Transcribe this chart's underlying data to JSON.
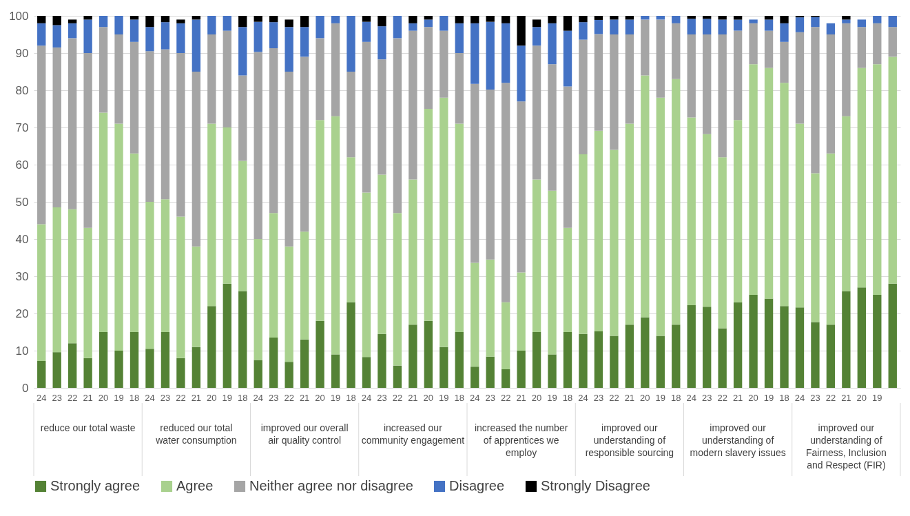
{
  "chart_data": {
    "type": "bar",
    "stacked": true,
    "categories": [
      "24",
      "23",
      "22",
      "21",
      "20",
      "19",
      "18",
      "24",
      "23",
      "22",
      "21",
      "20",
      "19",
      "18",
      "24",
      "23",
      "22",
      "21",
      "20",
      "19",
      "18",
      "24",
      "23",
      "22",
      "21",
      "20",
      "19",
      "18",
      "24",
      "23",
      "22",
      "21",
      "20",
      "19",
      "18",
      "24",
      "23",
      "22",
      "21",
      "20",
      "19",
      "18",
      "24",
      "23",
      "22",
      "21",
      "20",
      "19",
      "18",
      "24",
      "23",
      "22",
      "21",
      "20",
      "19",
      null
    ],
    "annotations": [
      "reduce our total waste",
      "reduced our total water consumption",
      "improved our overall air quality control",
      "increased our community engagement",
      "increased the number of apprentices we employ",
      "improved our understanding of responsible sourcing",
      "improved our understanding of modern slavery issues",
      "improved our understanding of Fairness, Inclusion and Respect (FIR)"
    ],
    "series": [
      {
        "name": "Strongly agree",
        "color": "#548235",
        "values": [
          7.2,
          9.6,
          12,
          8,
          15,
          10,
          15,
          10.5,
          15,
          8,
          11,
          22,
          28,
          26,
          7.5,
          13.5,
          7,
          13,
          18,
          9,
          23,
          8.3,
          14.5,
          6,
          17,
          18,
          11,
          15,
          5.7,
          8.4,
          5,
          10,
          15,
          9,
          15,
          14.5,
          15.2,
          14,
          17,
          19,
          14,
          17,
          22.2,
          21.8,
          16,
          23,
          25,
          24,
          22,
          21.6,
          17.7,
          17,
          26,
          27,
          25,
          28
        ]
      },
      {
        "name": "Agree",
        "color": "#a9d18e",
        "values": [
          36.8,
          38.9,
          36,
          35,
          59,
          61,
          48,
          39.5,
          35.7,
          38,
          27,
          49,
          42,
          35,
          32.5,
          33.5,
          31,
          29,
          54,
          64,
          39,
          44.2,
          42.8,
          41,
          39,
          57,
          67,
          56,
          27.9,
          26.1,
          18,
          21,
          41,
          44,
          28,
          48.3,
          53.9,
          50,
          54,
          65,
          64,
          66,
          50.5,
          46.4,
          46,
          49,
          62,
          62,
          60,
          49.4,
          40,
          46,
          47,
          59,
          62,
          61
        ]
      },
      {
        "name": "Neither agree nor disagree",
        "color": "#a5a5a5",
        "values": [
          48,
          43,
          46,
          47,
          23,
          24,
          30,
          40.5,
          40.3,
          44,
          47,
          24,
          26,
          23,
          50.3,
          44.3,
          47,
          47,
          22,
          25,
          23,
          40.5,
          31,
          47,
          40,
          22,
          18,
          19,
          48.1,
          45.7,
          59,
          46,
          36,
          34,
          38,
          30.8,
          26,
          31,
          24,
          15,
          21,
          15,
          22.3,
          26.8,
          33,
          24,
          11,
          10,
          11,
          24.6,
          39.3,
          32,
          25,
          11,
          11,
          8
        ]
      },
      {
        "name": "Disagree",
        "color": "#4472c4",
        "values": [
          6,
          6,
          4,
          9,
          3,
          5,
          6,
          6.5,
          7.3,
          8,
          14,
          5,
          4,
          13,
          8.1,
          7,
          12,
          8,
          6,
          2,
          15,
          5.4,
          8.9,
          6,
          2,
          2,
          4,
          8,
          16.3,
          18.2,
          16,
          15,
          5,
          11,
          15,
          4.7,
          3.8,
          4,
          4,
          1,
          1,
          2,
          4.2,
          4.2,
          4,
          3,
          1,
          3,
          5,
          4,
          2.7,
          3,
          1,
          2,
          2,
          3
        ]
      },
      {
        "name": "Strongly Disagree",
        "color": "#000000",
        "values": [
          2,
          2.5,
          1,
          1,
          0,
          0,
          1,
          3,
          1.7,
          1,
          1,
          0,
          0,
          3,
          1.6,
          1.7,
          2,
          3,
          0,
          0,
          0,
          1.6,
          2.8,
          0,
          2,
          1,
          0,
          2,
          2,
          1.6,
          2,
          8,
          2,
          2,
          4,
          1.7,
          1.1,
          1,
          1,
          0,
          0,
          0,
          0.8,
          0.8,
          1,
          1,
          0,
          1,
          2,
          0.4,
          0.3,
          0,
          1,
          0,
          0,
          0
        ]
      }
    ],
    "ylim": [
      0,
      100
    ],
    "yticks": [
      0,
      10,
      20,
      30,
      40,
      50,
      60,
      70,
      80,
      90,
      100
    ],
    "grid": "y",
    "legend": "bottom"
  }
}
